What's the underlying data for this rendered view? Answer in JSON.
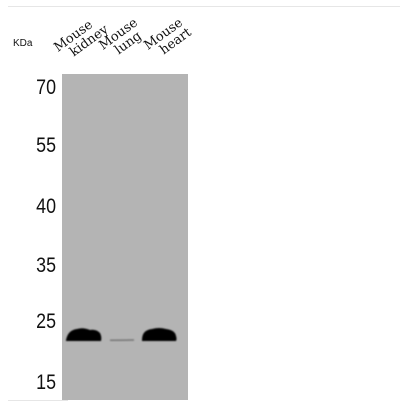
{
  "unit_label": "KDa",
  "lanes": [
    {
      "line1": "Mouse",
      "line2": "kidney"
    },
    {
      "line1": "Mouse",
      "line2": "lung"
    },
    {
      "line1": "Mouse",
      "line2": "heart"
    }
  ],
  "markers": [
    "70",
    "55",
    "40",
    "35",
    "25",
    "15"
  ],
  "membrane_color": "#b4b4b4",
  "band_color": "#050505",
  "bands": [
    {
      "lane": "Mouse kidney",
      "relative_intensity": 1.0
    },
    {
      "lane": "Mouse lung",
      "relative_intensity": 0.1
    },
    {
      "lane": "Mouse heart",
      "relative_intensity": 1.0
    }
  ]
}
